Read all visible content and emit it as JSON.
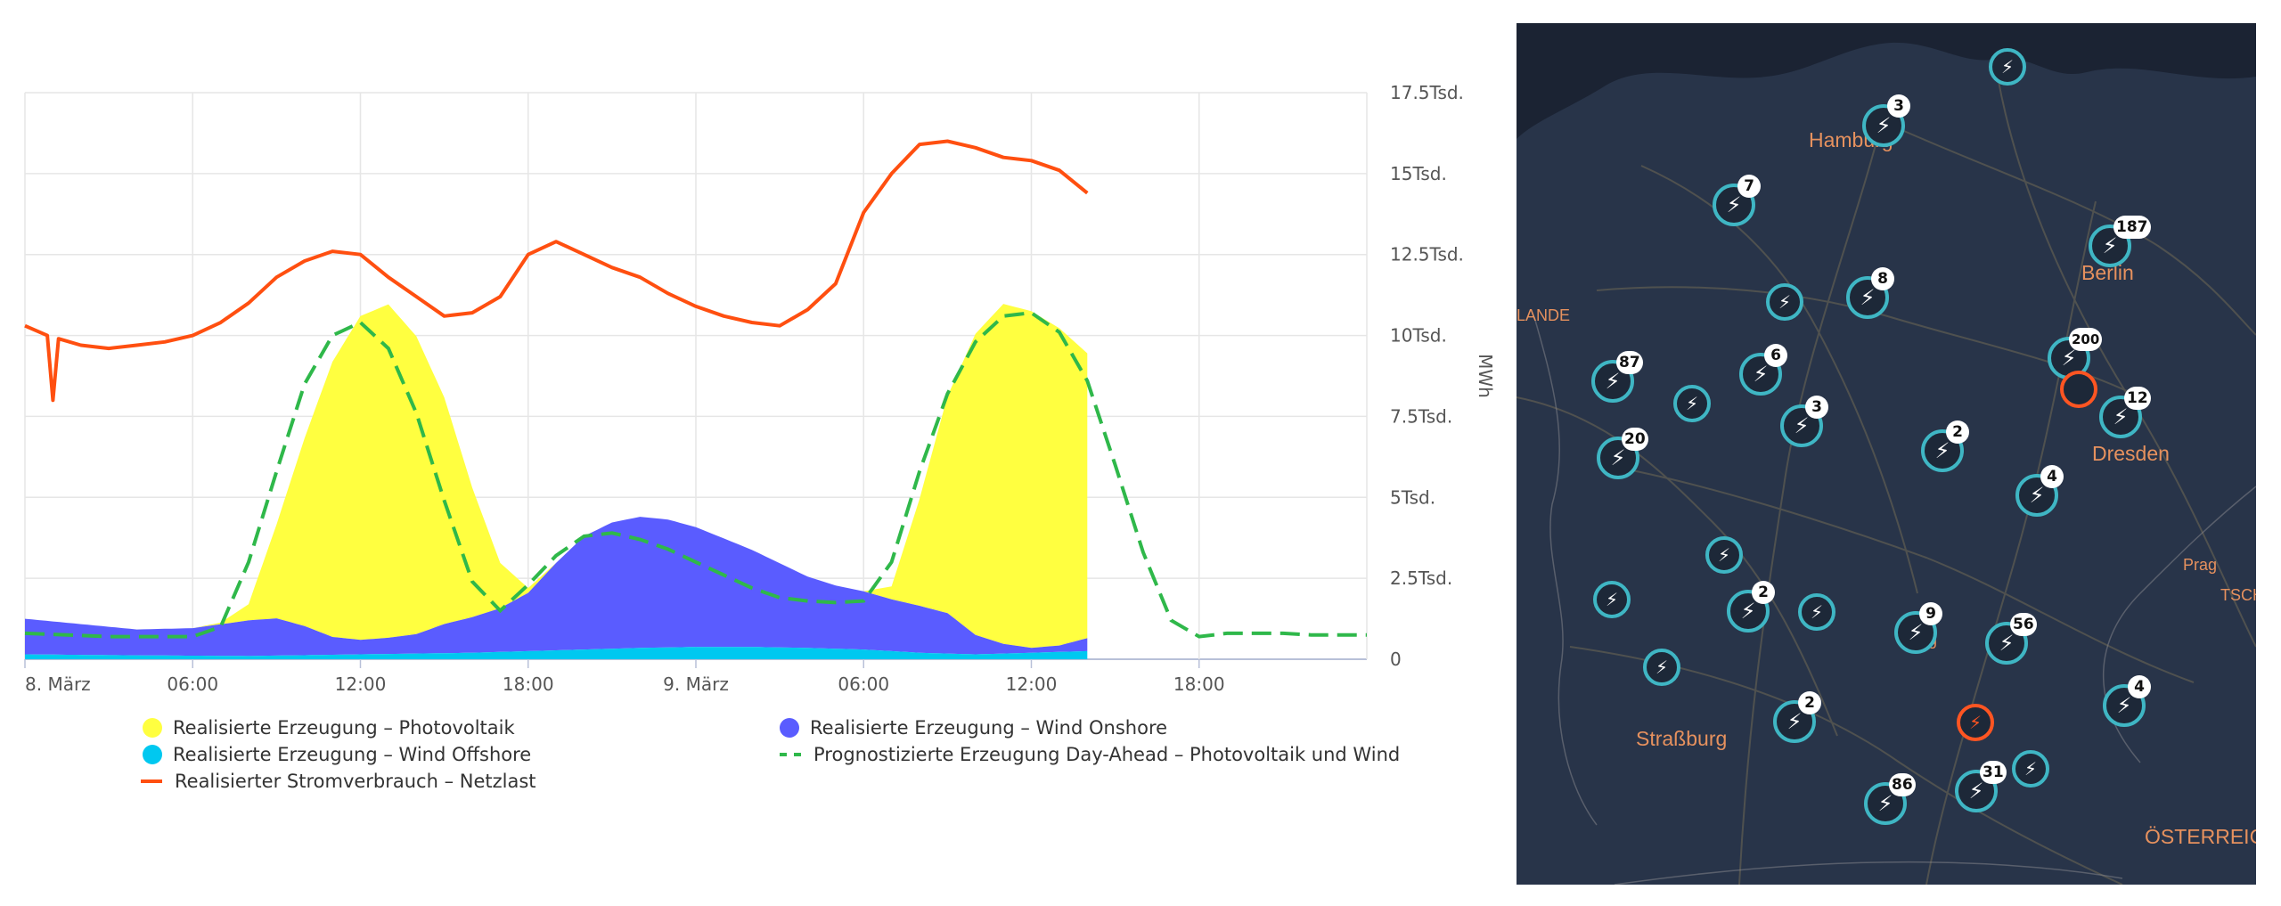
{
  "chart_data": {
    "type": "area",
    "x_unit": "hours since 8. März 00:00",
    "x_tick_labels": [
      "8. März",
      "06:00",
      "12:00",
      "18:00",
      "9. März",
      "06:00",
      "12:00",
      "18:00"
    ],
    "y_tick_labels": [
      "0",
      "2.5Tsd.",
      "5Tsd.",
      "7.5Tsd.",
      "10Tsd.",
      "12.5Tsd.",
      "15Tsd.",
      "17.5Tsd."
    ],
    "ylabel": "MWh",
    "ylim": [
      0,
      17500
    ],
    "grid": true,
    "legend_position": "bottom",
    "series": [
      {
        "name": "Realisierte Erzeugung – Wind Offshore",
        "kind": "area",
        "color": "#00c8f0",
        "x": [
          0,
          4,
          8,
          12,
          16,
          18,
          20,
          22,
          24,
          26,
          28,
          30,
          32,
          34,
          36,
          38
        ],
        "y": [
          150,
          120,
          100,
          150,
          200,
          250,
          300,
          350,
          380,
          380,
          350,
          300,
          200,
          150,
          200,
          250
        ]
      },
      {
        "name": "Realisierte Erzeugung – Wind Onshore",
        "kind": "area",
        "color": "#5a5cff",
        "x": [
          0,
          2,
          4,
          6,
          8,
          9,
          10,
          11,
          12,
          13,
          14,
          15,
          16,
          17,
          18,
          19,
          20,
          21,
          22,
          23,
          24,
          25,
          26,
          27,
          28,
          29,
          30,
          31,
          32,
          33,
          34,
          35,
          36,
          37,
          38
        ],
        "y": [
          1100,
          950,
          800,
          850,
          1100,
          1150,
          900,
          550,
          450,
          500,
          600,
          900,
          1100,
          1350,
          1800,
          2700,
          3500,
          3900,
          4050,
          3950,
          3700,
          3350,
          3000,
          2600,
          2200,
          1950,
          1800,
          1600,
          1450,
          1250,
          600,
          300,
          150,
          200,
          400
        ]
      },
      {
        "name": "Realisierte Erzeugung – Photovoltaik",
        "kind": "area",
        "color": "#ffff40",
        "x": [
          0,
          6,
          7,
          8,
          9,
          10,
          11,
          12,
          13,
          14,
          15,
          16,
          17,
          18,
          19,
          20,
          30,
          31,
          32,
          33,
          34,
          35,
          36,
          37,
          38
        ],
        "y": [
          0,
          0,
          50,
          500,
          2900,
          5800,
          8500,
          10000,
          10300,
          9200,
          7000,
          4000,
          1400,
          150,
          0,
          0,
          0,
          400,
          3300,
          6700,
          9300,
          10500,
          10400,
          9800,
          8800
        ]
      },
      {
        "name": "Realisierter Stromverbrauch – Netzlast",
        "kind": "line",
        "color": "#ff4f10",
        "x": [
          0,
          0.8,
          1,
          1.2,
          2,
          3,
          4,
          5,
          6,
          7,
          8,
          9,
          10,
          11,
          12,
          13,
          14,
          15,
          16,
          17,
          18,
          19,
          20,
          21,
          22,
          23,
          24,
          25,
          26,
          27,
          28,
          29,
          30,
          31,
          32,
          33,
          34,
          35,
          36,
          37,
          38
        ],
        "y": [
          10300,
          10000,
          8000,
          9900,
          9700,
          9600,
          9700,
          9800,
          10000,
          10400,
          11000,
          11800,
          12300,
          12600,
          12500,
          11800,
          11200,
          10600,
          10700,
          11200,
          12500,
          12900,
          12500,
          12100,
          11800,
          11300,
          10900,
          10600,
          10400,
          10300,
          10800,
          11600,
          13800,
          15000,
          15900,
          16000,
          15800,
          15500,
          15400,
          15100,
          14400
        ]
      },
      {
        "name": "Prognostizierte Erzeugung Day-Ahead – Photovoltaik und Wind",
        "kind": "dashed-line",
        "color": "#2fb84a",
        "x": [
          0,
          3,
          6,
          7,
          8,
          9,
          10,
          11,
          12,
          13,
          14,
          15,
          16,
          17,
          18,
          19,
          20,
          21,
          22,
          23,
          24,
          25,
          26,
          27,
          28,
          29,
          30,
          31,
          32,
          33,
          34,
          35,
          36,
          37,
          38,
          39,
          40,
          41,
          42,
          43,
          44,
          45,
          46,
          48
        ],
        "y": [
          800,
          700,
          700,
          1000,
          3000,
          5800,
          8500,
          10000,
          10400,
          9600,
          7600,
          4900,
          2400,
          1500,
          2300,
          3200,
          3800,
          3900,
          3700,
          3400,
          3000,
          2600,
          2200,
          1900,
          1800,
          1750,
          1800,
          3000,
          5800,
          8200,
          9800,
          10600,
          10700,
          10100,
          8600,
          6000,
          3300,
          1200,
          700,
          800,
          800,
          800,
          750,
          750
        ]
      }
    ]
  },
  "legend": [
    {
      "label": "Realisierte Erzeugung – Photovoltaik",
      "color": "#ffff40",
      "symbol": "dot"
    },
    {
      "label": "Realisierte Erzeugung – Wind Onshore",
      "color": "#5a5cff",
      "symbol": "dot"
    },
    {
      "label": "Realisierte Erzeugung – Wind Offshore",
      "color": "#00c8f0",
      "symbol": "dot"
    },
    {
      "label": "Prognostizierte Erzeugung Day-Ahead – Photovoltaik und Wind",
      "color": "#2fb84a",
      "symbol": "dashed-line"
    },
    {
      "label": "Realisierter Stromverbrauch – Netzlast",
      "color": "#ff4f10",
      "symbol": "line"
    }
  ],
  "map": {
    "background_color": "#283449",
    "marker_icon": "person-lightning-icon",
    "cities": [
      "Hamburg",
      "Berlin",
      "Dresden",
      "Straßburg",
      "ÖSTERREICH",
      "Prag",
      "LANDE",
      "TSCHE",
      "urg"
    ],
    "marker_counts": [
      "3",
      "7",
      "187",
      "8",
      "87",
      "6",
      "200",
      "3",
      "2",
      "12",
      "20",
      "4",
      "2",
      "9",
      "56",
      "2",
      "4",
      "86",
      "31"
    ]
  }
}
